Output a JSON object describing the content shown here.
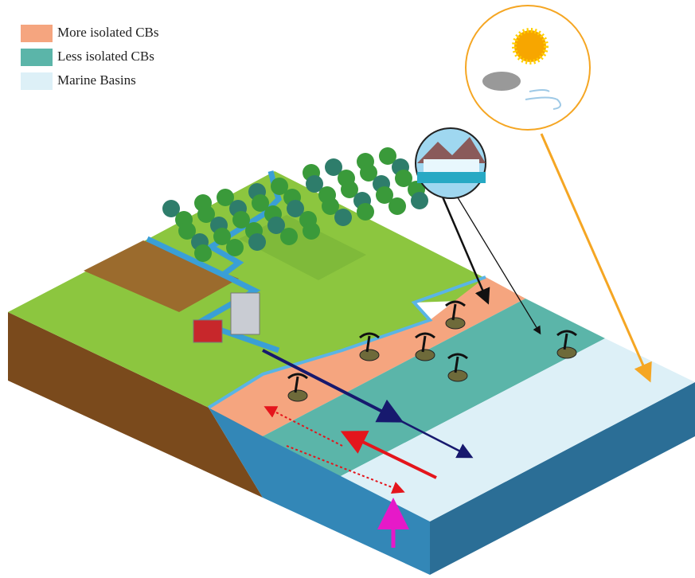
{
  "legend": [
    {
      "label": "More isolated CBs",
      "color": "#f5a57f"
    },
    {
      "label": "Less isolated CBs",
      "color": "#5bb5a9"
    },
    {
      "label": "Marine Basins",
      "color": "#ddf0f7"
    }
  ]
}
